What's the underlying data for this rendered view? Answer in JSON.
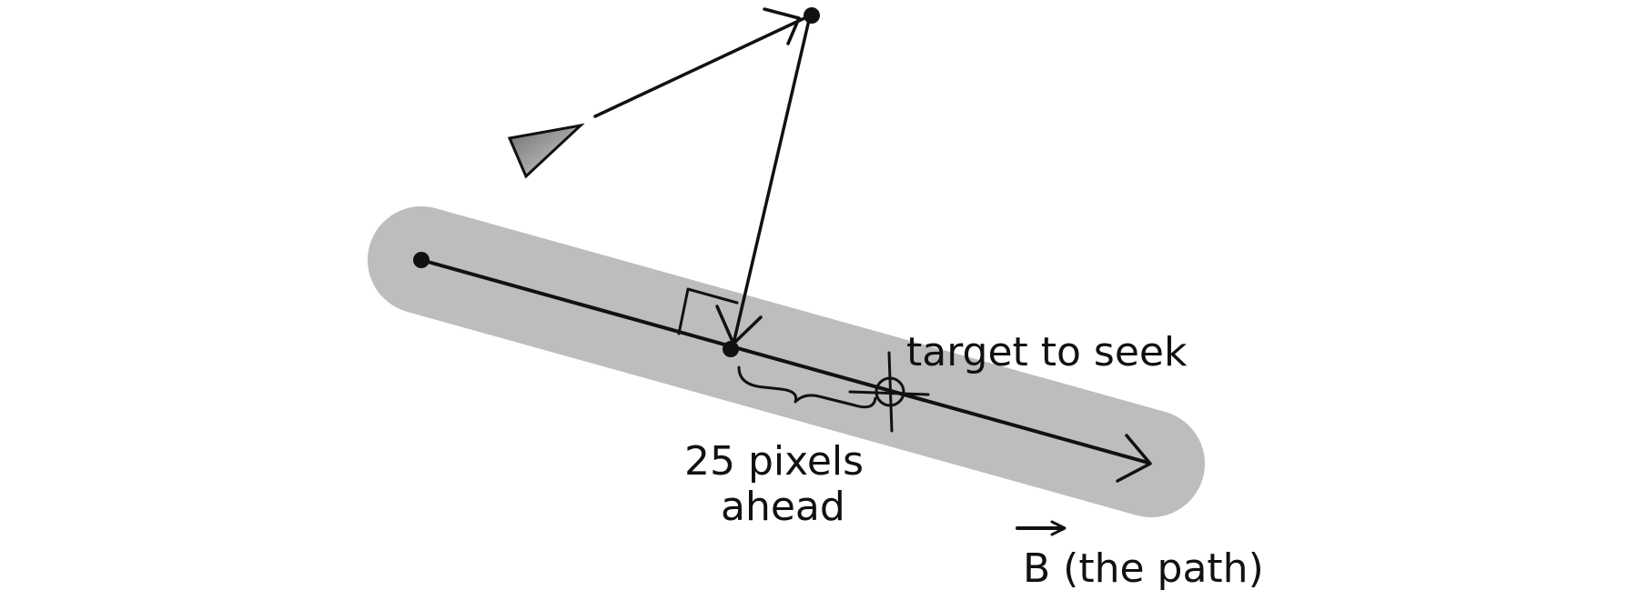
{
  "labels": {
    "target": "target to seek",
    "offset_line1": "25 pixels",
    "offset_line2": "ahead",
    "path_name": "B (the path)"
  },
  "colors": {
    "path_band": "#bcbdbf",
    "ink": "#111111",
    "vehicle_dark": "#7a7a7a",
    "vehicle_light": "#d2d2d2"
  }
}
